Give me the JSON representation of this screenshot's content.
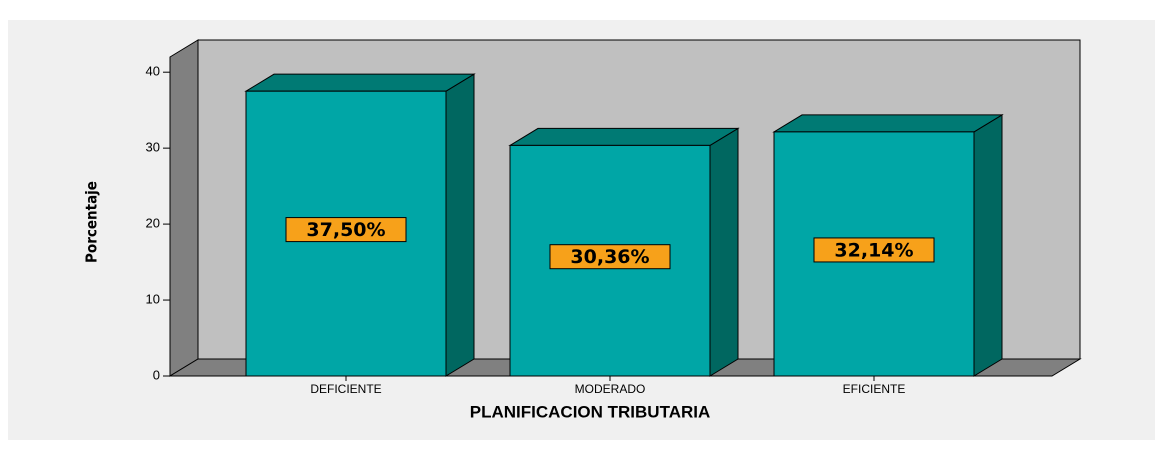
{
  "chart_data": {
    "type": "bar3d",
    "xlabel": "PLANIFICACION TRIBUTARIA",
    "ylabel": "Porcentaje",
    "categories": [
      "DEFICIENTE",
      "MODERADO",
      "EFICIENTE"
    ],
    "values": [
      37.5,
      30.36,
      32.14
    ],
    "value_labels": [
      "37,50%",
      "30,36%",
      "32,14%"
    ],
    "color": "#00a6a6",
    "ylim": [
      0,
      42
    ],
    "yticks": [
      0,
      10,
      20,
      30,
      40
    ]
  }
}
